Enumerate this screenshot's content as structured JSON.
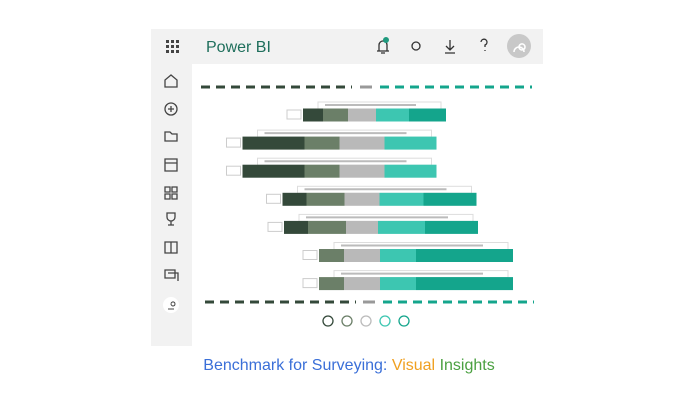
{
  "header": {
    "title": "Power BI"
  },
  "caption": {
    "part1": "Benchmark for Surveying:",
    "part2": "Visual",
    "part3": "Insights"
  },
  "chart_data": {
    "type": "diverging-bar",
    "categories": [
      null,
      null,
      null,
      null,
      null,
      null,
      null
    ],
    "series": [
      {
        "color": "#34493a",
        "values": [
          20,
          62,
          62,
          24,
          24,
          0,
          0
        ]
      },
      {
        "color": "#6b7f68",
        "values": [
          25,
          35,
          35,
          38,
          38,
          25,
          25
        ]
      },
      {
        "color": "#b9b9b9",
        "values": [
          28,
          45,
          45,
          35,
          32,
          36,
          36
        ]
      },
      {
        "color": "#3dc6b1",
        "values": [
          33,
          52,
          52,
          44,
          47,
          36,
          36
        ]
      },
      {
        "color": "#14a58c",
        "values": [
          37,
          0,
          0,
          53,
          53,
          97,
          97
        ]
      }
    ]
  }
}
